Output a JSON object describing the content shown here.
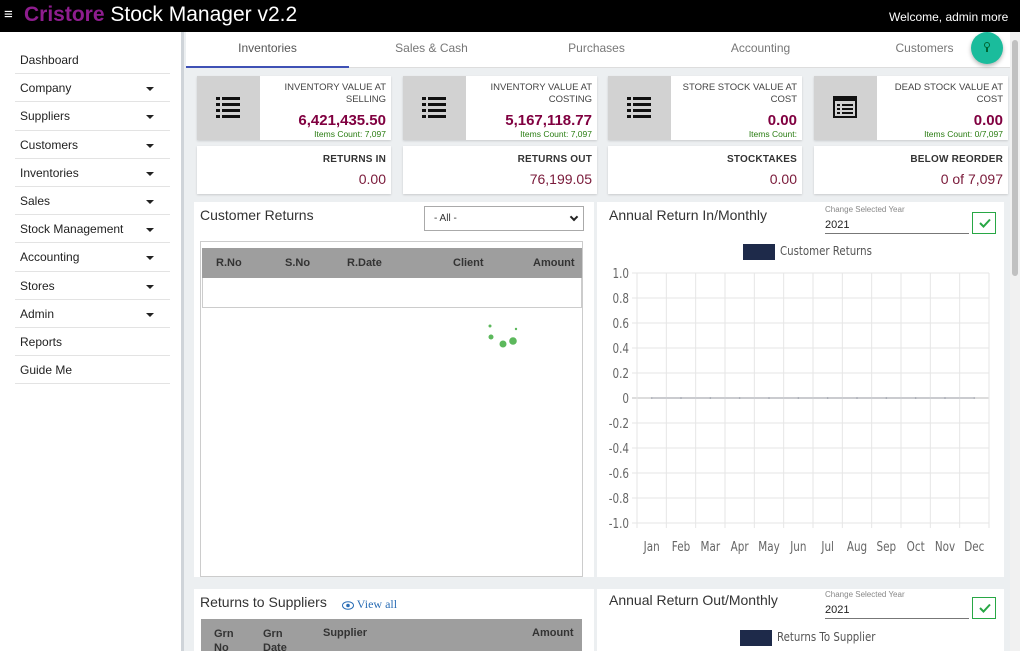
{
  "topbar": {
    "brand_part1": "Cristore",
    "brand_part2": "Stock Manager v2.2",
    "welcome": "Welcome, admin",
    "more": "more",
    "menu_icon": "hamburger-icon"
  },
  "sidebar": {
    "items": [
      {
        "label": "Dashboard",
        "has_caret": false
      },
      {
        "label": "Company",
        "has_caret": true
      },
      {
        "label": "Suppliers",
        "has_caret": true
      },
      {
        "label": "Customers",
        "has_caret": true
      },
      {
        "label": "Inventories",
        "has_caret": true
      },
      {
        "label": "Sales",
        "has_caret": true
      },
      {
        "label": "Stock Management",
        "has_caret": true
      },
      {
        "label": "Accounting",
        "has_caret": true
      },
      {
        "label": "Stores",
        "has_caret": true
      },
      {
        "label": "Admin",
        "has_caret": true
      },
      {
        "label": "Reports",
        "has_caret": false
      },
      {
        "label": "Guide Me",
        "has_caret": false
      }
    ]
  },
  "tabs": [
    {
      "label": "Inventories",
      "active": true
    },
    {
      "label": "Sales & Cash",
      "active": false
    },
    {
      "label": "Purchases",
      "active": false
    },
    {
      "label": "Accounting",
      "active": false
    },
    {
      "label": "Customers",
      "active": false
    }
  ],
  "cards": [
    {
      "title": "INVENTORY VALUE AT SELLING",
      "value": "6,421,435.50",
      "count": "Items Count: 7,097",
      "icon": "list-icon"
    },
    {
      "title": "INVENTORY VALUE AT COSTING",
      "value": "5,167,118.77",
      "count": "Items Count: 7,097",
      "icon": "list-icon"
    },
    {
      "title": "STORE STOCK VALUE AT COST",
      "value": "0.00",
      "count": "Items Count:",
      "icon": "list-icon"
    },
    {
      "title": "DEAD STOCK VALUE AT COST",
      "value": "0.00",
      "count": "Items Count: 0/7,097",
      "icon": "card-list-icon"
    }
  ],
  "small_cards": [
    {
      "label": "RETURNS IN",
      "value": "0.00"
    },
    {
      "label": "RETURNS OUT",
      "value": "76,199.05"
    },
    {
      "label": "STOCKTAKES",
      "value": "0.00"
    },
    {
      "label": "BELOW REORDER",
      "value": "0 of 7,097"
    }
  ],
  "customer_returns": {
    "title": "Customer Returns",
    "filter_selected": "- All -",
    "columns": [
      "R.No",
      "S.No",
      "R.Date",
      "Client",
      "Amount"
    ]
  },
  "returns_to_suppliers": {
    "title": "Returns to Suppliers",
    "view_all": "View all",
    "columns": [
      "Grn No",
      "Grn Date",
      "Supplier",
      "Amount"
    ]
  },
  "annual_in": {
    "title": "Annual Return In/Monthly",
    "year_label": "Change Selected Year",
    "year": "2021",
    "legend": "Customer Returns"
  },
  "annual_out": {
    "title": "Annual Return Out/Monthly",
    "year_label": "Change Selected Year",
    "year": "2021",
    "legend": "Returns To Supplier"
  },
  "chart_data": {
    "type": "line",
    "title": "Annual Return In/Monthly",
    "xlabel": "",
    "ylabel": "",
    "categories": [
      "Jan",
      "Feb",
      "Mar",
      "Apr",
      "May",
      "Jun",
      "Jul",
      "Aug",
      "Sep",
      "Oct",
      "Nov",
      "Dec"
    ],
    "series": [
      {
        "name": "Customer Returns",
        "values": [
          0,
          0,
          0,
          0,
          0,
          0,
          0,
          0,
          0,
          0,
          0,
          0
        ],
        "color": "#1e2a4a"
      }
    ],
    "yticks": [
      "1.0",
      "0.8",
      "0.6",
      "0.4",
      "0.2",
      "0",
      "-0.2",
      "-0.4",
      "-0.6",
      "-0.8",
      "-1.0"
    ],
    "ylim": [
      -1.0,
      1.0
    ],
    "grid": true,
    "legend": "top"
  },
  "colors": {
    "brand": "#8e1d8e",
    "value": "#800040",
    "count": "#2a7d12",
    "tab_active": "#3f51b5",
    "fab": "#1abc9c"
  }
}
